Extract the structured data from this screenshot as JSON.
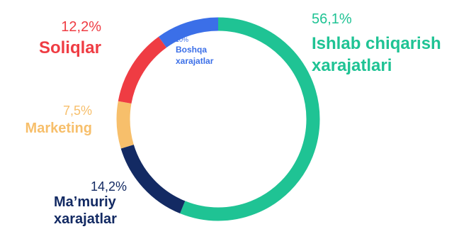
{
  "chart_data": {
    "type": "pie",
    "title": "",
    "categories": [
      "Ishlab chiqarish xarajatlari",
      "Ma’muriy xarajatlar",
      "Marketing",
      "Soliqlar",
      "Boshqa xarajatlar"
    ],
    "values": [
      56.1,
      14.2,
      7.5,
      12.2,
      10
    ],
    "value_labels": [
      "56,1%",
      "14,2%",
      "7,5%",
      "12,2%",
      "10%"
    ],
    "colors": [
      "#1fc394",
      "#132a63",
      "#f7bf6b",
      "#ef3c43",
      "#3b6fe8"
    ],
    "donut": true
  },
  "labels": {
    "production": {
      "pct": "56,1%",
      "line1": "Ishlab chiqarish",
      "line2": "xarajatlari"
    },
    "admin": {
      "pct": "14,2%",
      "line1": "Ma’muriy",
      "line2": "xarajatlar"
    },
    "marketing": {
      "pct": "7,5%",
      "line1": "Marketing"
    },
    "taxes": {
      "pct": "12,2%",
      "line1": "Soliqlar"
    },
    "other": {
      "pct": "10%",
      "line1": "Boshqa",
      "line2": "xarajatlar"
    }
  }
}
